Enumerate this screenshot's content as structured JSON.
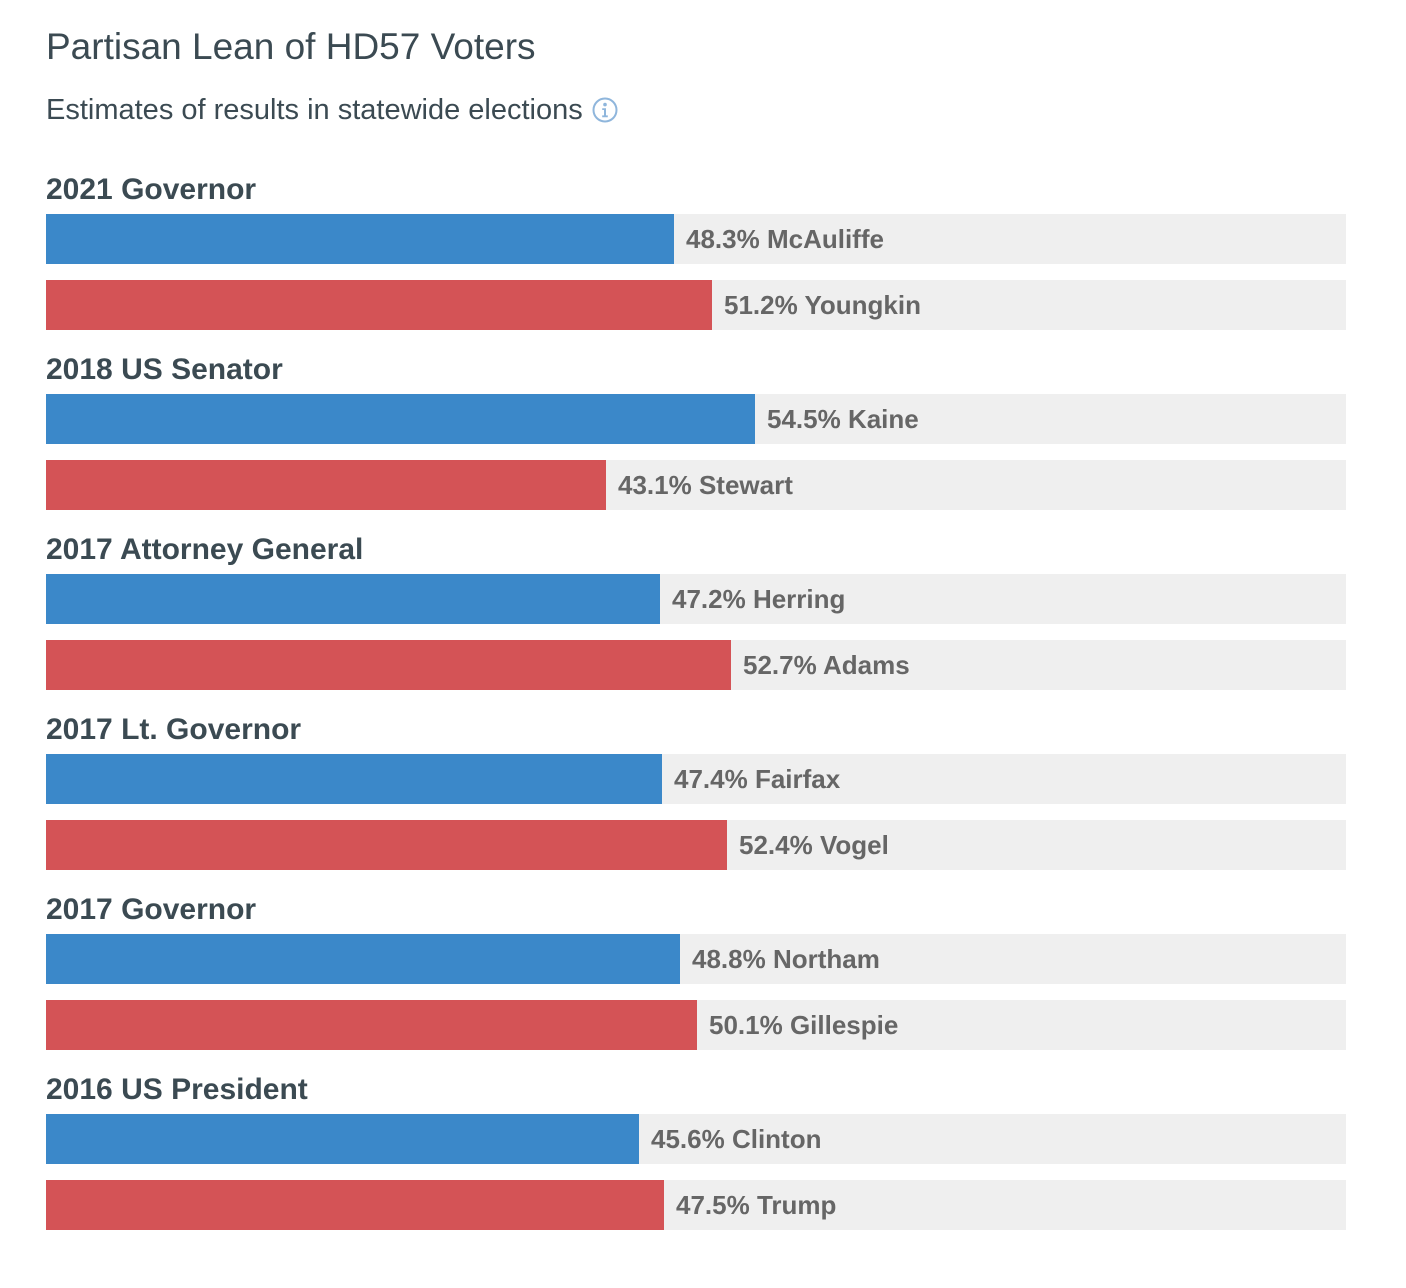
{
  "header": {
    "title": "Partisan Lean of HD57 Voters",
    "subtitle": "Estimates of results in statewide elections",
    "info_icon": "info-icon"
  },
  "colors": {
    "dem": "#3b88c9",
    "rep": "#d45356",
    "track": "#efefef",
    "text": "#3b4a52",
    "label": "#666666"
  },
  "chart_data": {
    "type": "bar",
    "orientation": "horizontal",
    "xlim": [
      0,
      100
    ],
    "grid": false,
    "groups": [
      {
        "title": "2021 Governor",
        "bars": [
          {
            "party": "dem",
            "value": 48.3,
            "candidate": "McAuliffe",
            "label": "48.3% McAuliffe"
          },
          {
            "party": "rep",
            "value": 51.2,
            "candidate": "Youngkin",
            "label": "51.2% Youngkin"
          }
        ]
      },
      {
        "title": "2018 US Senator",
        "bars": [
          {
            "party": "dem",
            "value": 54.5,
            "candidate": "Kaine",
            "label": "54.5% Kaine"
          },
          {
            "party": "rep",
            "value": 43.1,
            "candidate": "Stewart",
            "label": "43.1% Stewart"
          }
        ]
      },
      {
        "title": "2017 Attorney General",
        "bars": [
          {
            "party": "dem",
            "value": 47.2,
            "candidate": "Herring",
            "label": "47.2% Herring"
          },
          {
            "party": "rep",
            "value": 52.7,
            "candidate": "Adams",
            "label": "52.7% Adams"
          }
        ]
      },
      {
        "title": "2017 Lt. Governor",
        "bars": [
          {
            "party": "dem",
            "value": 47.4,
            "candidate": "Fairfax",
            "label": "47.4% Fairfax"
          },
          {
            "party": "rep",
            "value": 52.4,
            "candidate": "Vogel",
            "label": "52.4% Vogel"
          }
        ]
      },
      {
        "title": "2017 Governor",
        "bars": [
          {
            "party": "dem",
            "value": 48.8,
            "candidate": "Northam",
            "label": "48.8% Northam"
          },
          {
            "party": "rep",
            "value": 50.1,
            "candidate": "Gillespie",
            "label": "50.1% Gillespie"
          }
        ]
      },
      {
        "title": "2016 US President",
        "bars": [
          {
            "party": "dem",
            "value": 45.6,
            "candidate": "Clinton",
            "label": "45.6% Clinton"
          },
          {
            "party": "rep",
            "value": 47.5,
            "candidate": "Trump",
            "label": "47.5% Trump"
          }
        ]
      }
    ]
  }
}
